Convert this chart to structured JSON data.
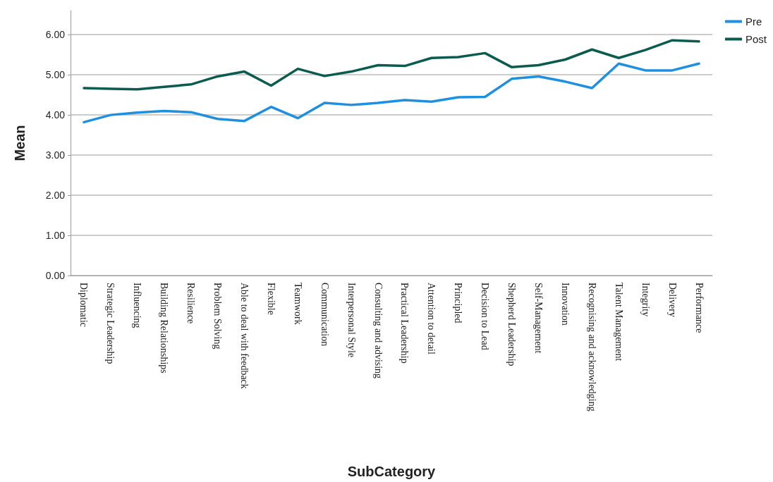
{
  "chart_data": {
    "type": "line",
    "xlabel": "SubCategory",
    "ylabel": "Mean",
    "categories": [
      "Diplomatic",
      "Strategic Leadership",
      "Influencing",
      "Building Relationships",
      "Resilience",
      "Problem Solving",
      "Able to deal with feedback",
      "Flexible",
      "Teamwork",
      "Communication",
      "Interpersonal Style",
      "Consulting and advising",
      "Practical Leadership",
      "Attention to detail",
      "Principled",
      "Decision to Lead",
      "Shepherd Leadership",
      "Self-Management",
      "Innovation",
      "Recognising and acknowledging",
      "Talent Management",
      "Integrity",
      "Delivery",
      "Performance"
    ],
    "series": [
      {
        "name": "Pre",
        "color": "#1f8fdf",
        "values": [
          3.82,
          4.0,
          4.06,
          4.1,
          4.07,
          3.9,
          3.85,
          4.2,
          3.92,
          4.3,
          4.25,
          4.3,
          4.37,
          4.33,
          4.44,
          4.45,
          4.9,
          4.96,
          4.83,
          4.67,
          5.28,
          5.11,
          5.11,
          5.28
        ]
      },
      {
        "name": "Post",
        "color": "#0b5c4f",
        "values": [
          4.67,
          4.65,
          4.64,
          4.7,
          4.76,
          4.96,
          5.08,
          4.73,
          5.15,
          4.97,
          5.08,
          5.24,
          5.22,
          5.42,
          5.44,
          5.54,
          5.19,
          5.24,
          5.38,
          5.63,
          5.42,
          5.62,
          5.86,
          5.83
        ]
      }
    ],
    "ylim": [
      0,
      6.6
    ],
    "yticks": [
      {
        "value": 0,
        "label": "0.00"
      },
      {
        "value": 1,
        "label": "1.00"
      },
      {
        "value": 2,
        "label": "2.00"
      },
      {
        "value": 3,
        "label": "3.00"
      },
      {
        "value": 4,
        "label": "4.00"
      },
      {
        "value": 5,
        "label": "5.00"
      },
      {
        "value": 6,
        "label": "6.00"
      }
    ],
    "grid": "y",
    "legend": "top right",
    "marker": "none",
    "line_style": "solid"
  }
}
